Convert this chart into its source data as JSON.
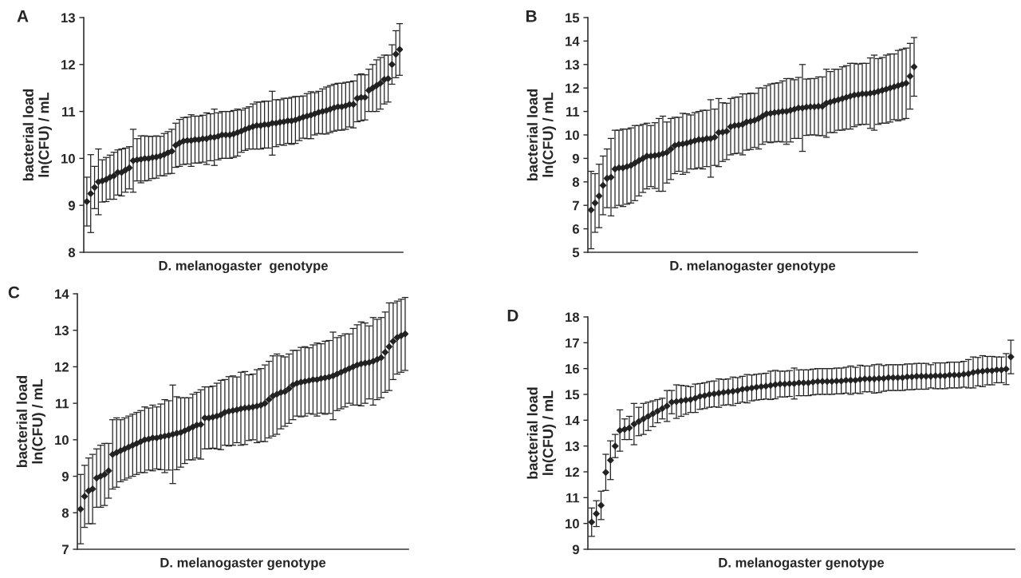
{
  "chart_data": [
    {
      "type": "scatter",
      "title": "A",
      "xlabel": "D. melanogaster  genotype",
      "ylabel": "bacterial load\nln(CFU) / mL",
      "marker": "diamond",
      "grid": false,
      "legend": false,
      "ylim": [
        8,
        13
      ],
      "yticks": [
        8,
        9,
        10,
        11,
        12,
        13
      ],
      "categories": [
        null,
        null,
        null,
        null,
        null,
        null,
        null,
        null,
        null,
        null,
        null,
        null,
        null,
        null,
        null,
        null,
        null,
        null,
        null,
        null,
        null,
        null,
        null,
        null,
        null,
        null,
        null,
        null,
        null,
        null,
        null,
        null,
        null,
        null,
        null,
        null,
        null,
        null,
        null,
        null,
        null,
        null,
        null,
        null,
        null,
        null,
        null,
        null,
        null,
        null,
        null,
        null,
        null,
        null,
        null,
        null,
        null,
        null,
        null,
        null,
        null,
        null,
        null,
        null,
        null,
        null,
        null,
        null,
        null,
        null,
        null,
        null,
        null,
        null,
        null,
        null,
        null,
        null,
        null,
        null,
        null,
        null
      ],
      "series": [
        {
          "color": "#222222",
          "values": [
            9.08,
            9.25,
            9.38,
            9.5,
            9.52,
            9.55,
            9.6,
            9.63,
            9.7,
            9.7,
            9.75,
            9.8,
            9.95,
            9.97,
            9.98,
            10.0,
            10.0,
            10.02,
            10.03,
            10.05,
            10.08,
            10.12,
            10.15,
            10.28,
            10.33,
            10.37,
            10.38,
            10.38,
            10.4,
            10.4,
            10.42,
            10.42,
            10.45,
            10.45,
            10.47,
            10.5,
            10.5,
            10.5,
            10.52,
            10.55,
            10.58,
            10.62,
            10.65,
            10.68,
            10.7,
            10.7,
            10.72,
            10.72,
            10.75,
            10.75,
            10.77,
            10.78,
            10.8,
            10.8,
            10.82,
            10.85,
            10.88,
            10.9,
            10.92,
            10.95,
            10.98,
            11.0,
            11.02,
            11.05,
            11.08,
            11.1,
            11.1,
            11.12,
            11.15,
            11.15,
            11.28,
            11.3,
            11.3,
            11.45,
            11.5,
            11.55,
            11.6,
            11.68,
            11.7,
            12.0,
            12.22,
            12.32
          ],
          "errors": [
            0.52,
            0.83,
            0.45,
            0.7,
            0.45,
            0.47,
            0.47,
            0.5,
            0.48,
            0.5,
            0.47,
            0.45,
            0.67,
            0.45,
            0.5,
            0.48,
            0.47,
            0.45,
            0.45,
            0.42,
            0.45,
            0.45,
            0.47,
            0.47,
            0.5,
            0.5,
            0.5,
            0.55,
            0.5,
            0.5,
            0.5,
            0.55,
            0.5,
            0.6,
            0.5,
            0.5,
            0.5,
            0.5,
            0.5,
            0.5,
            0.45,
            0.45,
            0.45,
            0.48,
            0.5,
            0.5,
            0.5,
            0.5,
            0.68,
            0.5,
            0.48,
            0.5,
            0.48,
            0.5,
            0.5,
            0.47,
            0.45,
            0.48,
            0.5,
            0.45,
            0.45,
            0.48,
            0.5,
            0.5,
            0.5,
            0.5,
            0.5,
            0.5,
            0.48,
            0.5,
            0.5,
            0.5,
            0.48,
            0.45,
            0.5,
            0.55,
            0.55,
            0.52,
            0.5,
            0.42,
            0.5,
            0.55
          ]
        }
      ]
    },
    {
      "type": "scatter",
      "title": "B",
      "xlabel": "D. melanogaster genotype",
      "ylabel": "bacterial load\nln(CFU) / mL",
      "marker": "diamond",
      "grid": false,
      "legend": false,
      "ylim": [
        5,
        15
      ],
      "yticks": [
        5,
        6,
        7,
        8,
        9,
        10,
        11,
        12,
        13,
        14,
        15
      ],
      "categories": [
        null,
        null,
        null,
        null,
        null,
        null,
        null,
        null,
        null,
        null,
        null,
        null,
        null,
        null,
        null,
        null,
        null,
        null,
        null,
        null,
        null,
        null,
        null,
        null,
        null,
        null,
        null,
        null,
        null,
        null,
        null,
        null,
        null,
        null,
        null,
        null,
        null,
        null,
        null,
        null,
        null,
        null,
        null,
        null,
        null,
        null,
        null,
        null,
        null,
        null,
        null,
        null,
        null,
        null,
        null,
        null,
        null,
        null,
        null,
        null,
        null,
        null,
        null,
        null,
        null,
        null,
        null,
        null,
        null,
        null,
        null,
        null,
        null,
        null,
        null,
        null,
        null,
        null,
        null,
        null,
        null,
        null
      ],
      "series": [
        {
          "color": "#222222",
          "values": [
            6.8,
            7.1,
            7.4,
            7.85,
            8.15,
            8.2,
            8.55,
            8.6,
            8.6,
            8.65,
            8.7,
            8.8,
            8.9,
            9.0,
            9.1,
            9.1,
            9.12,
            9.15,
            9.2,
            9.25,
            9.4,
            9.55,
            9.6,
            9.62,
            9.65,
            9.7,
            9.75,
            9.8,
            9.8,
            9.85,
            9.85,
            9.9,
            10.1,
            10.12,
            10.15,
            10.35,
            10.4,
            10.42,
            10.45,
            10.55,
            10.58,
            10.62,
            10.7,
            10.8,
            10.9,
            10.92,
            10.95,
            10.97,
            11.0,
            11.0,
            11.05,
            11.1,
            11.15,
            11.15,
            11.18,
            11.2,
            11.2,
            11.22,
            11.22,
            11.35,
            11.4,
            11.45,
            11.5,
            11.55,
            11.6,
            11.65,
            11.7,
            11.72,
            11.75,
            11.75,
            11.78,
            11.8,
            11.85,
            11.9,
            11.95,
            12.0,
            12.05,
            12.1,
            12.15,
            12.2,
            12.5,
            12.9
          ],
          "errors": [
            1.65,
            1.25,
            1.35,
            1.25,
            1.25,
            1.65,
            1.65,
            1.6,
            1.65,
            1.6,
            1.6,
            1.6,
            1.5,
            1.45,
            1.4,
            1.3,
            1.4,
            1.55,
            1.6,
            1.3,
            1.3,
            1.2,
            1.15,
            1.3,
            1.25,
            1.15,
            1.2,
            1.2,
            1.25,
            1.2,
            1.65,
            1.2,
            1.45,
            1.25,
            1.2,
            1.2,
            1.2,
            1.2,
            1.3,
            1.2,
            1.2,
            1.15,
            1.3,
            1.2,
            1.2,
            1.25,
            1.25,
            1.25,
            1.3,
            1.4,
            1.35,
            1.25,
            1.3,
            1.85,
            1.2,
            1.2,
            1.2,
            1.25,
            1.25,
            1.45,
            1.3,
            1.35,
            1.3,
            1.35,
            1.35,
            1.4,
            1.35,
            1.3,
            1.3,
            1.3,
            1.5,
            1.6,
            1.4,
            1.4,
            1.45,
            1.45,
            1.4,
            1.5,
            1.5,
            1.5,
            1.4,
            1.25
          ]
        }
      ]
    },
    {
      "type": "scatter",
      "title": "C",
      "xlabel": "D. melanogaster genotype",
      "ylabel": "bacterial load\nln(CFU) / mL",
      "marker": "diamond",
      "grid": false,
      "legend": false,
      "ylim": [
        7,
        14
      ],
      "yticks": [
        7,
        8,
        9,
        10,
        11,
        12,
        13,
        14
      ],
      "categories": [
        null,
        null,
        null,
        null,
        null,
        null,
        null,
        null,
        null,
        null,
        null,
        null,
        null,
        null,
        null,
        null,
        null,
        null,
        null,
        null,
        null,
        null,
        null,
        null,
        null,
        null,
        null,
        null,
        null,
        null,
        null,
        null,
        null,
        null,
        null,
        null,
        null,
        null,
        null,
        null,
        null,
        null,
        null,
        null,
        null,
        null,
        null,
        null,
        null,
        null,
        null,
        null,
        null,
        null,
        null,
        null,
        null,
        null,
        null,
        null,
        null,
        null,
        null,
        null,
        null,
        null,
        null,
        null,
        null,
        null,
        null,
        null,
        null,
        null,
        null,
        null,
        null,
        null,
        null,
        null,
        null,
        null
      ],
      "series": [
        {
          "color": "#222222",
          "values": [
            8.1,
            8.45,
            8.6,
            8.65,
            8.95,
            9.0,
            9.05,
            9.15,
            9.6,
            9.65,
            9.7,
            9.75,
            9.8,
            9.85,
            9.9,
            9.95,
            10.0,
            10.02,
            10.05,
            10.05,
            10.08,
            10.1,
            10.12,
            10.15,
            10.18,
            10.2,
            10.25,
            10.3,
            10.35,
            10.4,
            10.42,
            10.6,
            10.6,
            10.62,
            10.65,
            10.68,
            10.75,
            10.78,
            10.8,
            10.82,
            10.85,
            10.87,
            10.88,
            10.9,
            10.92,
            10.95,
            11.0,
            11.1,
            11.2,
            11.25,
            11.3,
            11.32,
            11.4,
            11.5,
            11.55,
            11.58,
            11.6,
            11.62,
            11.65,
            11.65,
            11.68,
            11.7,
            11.72,
            11.75,
            11.8,
            11.85,
            11.9,
            11.95,
            12.0,
            12.05,
            12.08,
            12.1,
            12.12,
            12.15,
            12.2,
            12.25,
            12.4,
            12.55,
            12.7,
            12.8,
            12.85,
            12.9
          ],
          "errors": [
            0.95,
            0.85,
            0.9,
            0.95,
            0.8,
            0.85,
            0.85,
            0.75,
            0.95,
            0.95,
            0.85,
            0.85,
            0.85,
            0.85,
            0.85,
            0.85,
            0.9,
            0.85,
            0.9,
            0.85,
            0.9,
            1.0,
            0.95,
            1.35,
            1.0,
            0.95,
            0.9,
            0.85,
            0.9,
            0.9,
            0.95,
            0.85,
            0.85,
            0.85,
            0.9,
            0.95,
            0.9,
            0.95,
            0.95,
            0.9,
            1.0,
            1.0,
            0.9,
            0.9,
            1.0,
            1.0,
            1.05,
            1.05,
            1.1,
            1.1,
            1.0,
            0.95,
            0.95,
            0.95,
            0.9,
            0.95,
            0.95,
            0.9,
            0.95,
            1.0,
            0.95,
            1.0,
            1.0,
            1.2,
            1.0,
            1.0,
            1.0,
            0.95,
            1.05,
            1.1,
            1.15,
            1.1,
            1.0,
            1.2,
            1.1,
            1.1,
            1.1,
            1.2,
            1.05,
            1.0,
            1.0,
            1.0
          ]
        }
      ]
    },
    {
      "type": "scatter",
      "title": "D",
      "xlabel": "D. melanogaster genotype",
      "ylabel": "bacterial load\nln(CFU) / mL",
      "marker": "diamond",
      "grid": false,
      "legend": false,
      "ylim": [
        9,
        18
      ],
      "yticks": [
        9,
        10,
        11,
        12,
        13,
        14,
        15,
        16,
        17,
        18
      ],
      "categories": [
        null,
        null,
        null,
        null,
        null,
        null,
        null,
        null,
        null,
        null,
        null,
        null,
        null,
        null,
        null,
        null,
        null,
        null,
        null,
        null,
        null,
        null,
        null,
        null,
        null,
        null,
        null,
        null,
        null,
        null,
        null,
        null,
        null,
        null,
        null,
        null,
        null,
        null,
        null,
        null,
        null,
        null,
        null,
        null,
        null,
        null,
        null,
        null,
        null,
        null,
        null,
        null,
        null,
        null,
        null,
        null,
        null,
        null,
        null,
        null,
        null,
        null,
        null,
        null,
        null,
        null,
        null,
        null,
        null,
        null,
        null,
        null,
        null,
        null,
        null,
        null,
        null,
        null,
        null,
        null,
        null,
        null,
        null,
        null,
        null,
        null,
        null,
        null,
        null,
        null
      ],
      "series": [
        {
          "color": "#222222",
          "values": [
            10.05,
            10.38,
            10.7,
            11.98,
            12.45,
            13.0,
            13.6,
            13.65,
            13.7,
            13.85,
            13.95,
            14.05,
            14.15,
            14.25,
            14.35,
            14.45,
            14.55,
            14.7,
            14.72,
            14.75,
            14.78,
            14.8,
            14.85,
            14.92,
            14.95,
            15.0,
            15.02,
            15.05,
            15.08,
            15.1,
            15.12,
            15.15,
            15.2,
            15.22,
            15.25,
            15.28,
            15.3,
            15.32,
            15.35,
            15.38,
            15.4,
            15.4,
            15.42,
            15.42,
            15.45,
            15.45,
            15.45,
            15.48,
            15.5,
            15.5,
            15.5,
            15.5,
            15.52,
            15.52,
            15.55,
            15.55,
            15.55,
            15.58,
            15.6,
            15.6,
            15.6,
            15.62,
            15.62,
            15.65,
            15.65,
            15.65,
            15.65,
            15.68,
            15.68,
            15.7,
            15.7,
            15.7,
            15.7,
            15.72,
            15.72,
            15.72,
            15.75,
            15.75,
            15.75,
            15.78,
            15.8,
            15.85,
            15.88,
            15.9,
            15.92,
            15.92,
            15.95,
            15.95,
            15.98,
            16.45
          ],
          "errors": [
            0.55,
            0.5,
            0.55,
            0.7,
            0.75,
            0.45,
            0.8,
            0.4,
            0.45,
            0.8,
            0.55,
            0.6,
            0.55,
            0.5,
            0.45,
            0.4,
            0.6,
            0.45,
            0.65,
            0.6,
            0.55,
            0.5,
            0.55,
            0.5,
            0.5,
            0.5,
            0.5,
            0.55,
            0.5,
            0.5,
            0.55,
            0.5,
            0.5,
            0.55,
            0.5,
            0.5,
            0.5,
            0.5,
            0.55,
            0.55,
            0.5,
            0.5,
            0.5,
            0.6,
            0.5,
            0.5,
            0.5,
            0.5,
            0.5,
            0.5,
            0.5,
            0.5,
            0.5,
            0.5,
            0.5,
            0.55,
            0.5,
            0.55,
            0.5,
            0.5,
            0.55,
            0.55,
            0.5,
            0.5,
            0.5,
            0.5,
            0.5,
            0.5,
            0.5,
            0.5,
            0.5,
            0.5,
            0.45,
            0.5,
            0.5,
            0.5,
            0.5,
            0.5,
            0.5,
            0.5,
            0.55,
            0.6,
            0.55,
            0.6,
            0.55,
            0.55,
            0.5,
            0.5,
            0.6,
            0.65
          ]
        }
      ]
    }
  ]
}
